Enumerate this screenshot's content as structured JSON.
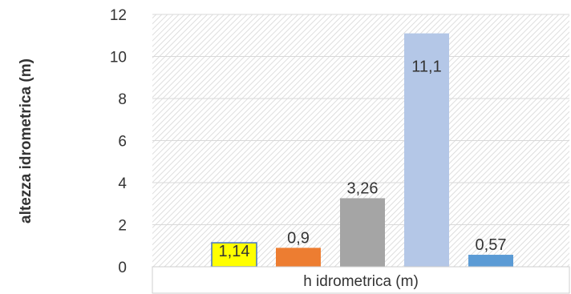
{
  "chart_data": {
    "type": "bar",
    "categories": [
      "h idrometrica (m)"
    ],
    "series": [
      {
        "values": [
          1.14
        ],
        "label": "1,14",
        "color": "#FFFF00"
      },
      {
        "values": [
          0.9
        ],
        "label": "0,9",
        "color": "#ED7D31"
      },
      {
        "values": [
          3.26
        ],
        "label": "3,26",
        "color": "#A5A5A5"
      },
      {
        "values": [
          11.1
        ],
        "label": "11,1",
        "color": "#B4C7E7"
      },
      {
        "values": [
          0.57
        ],
        "label": "0,57",
        "color": "#5B9BD5"
      }
    ],
    "title": "",
    "xlabel": "",
    "ylabel": "altezza idrometrica (m)",
    "ylim": [
      0,
      12
    ],
    "yticks": [
      0,
      2,
      4,
      6,
      8,
      10,
      12
    ],
    "grid": true,
    "legend": "none"
  }
}
